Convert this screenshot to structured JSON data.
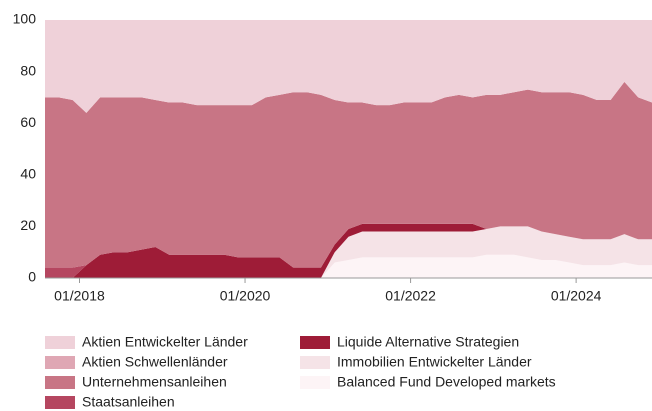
{
  "chart_data": {
    "type": "stacked_area",
    "x": [
      "08/2017",
      "10/2017",
      "12/2017",
      "02/2018",
      "04/2018",
      "06/2018",
      "08/2018",
      "10/2018",
      "12/2018",
      "02/2019",
      "04/2019",
      "06/2019",
      "08/2019",
      "10/2019",
      "12/2019",
      "02/2020",
      "04/2020",
      "06/2020",
      "08/2020",
      "10/2020",
      "12/2020",
      "02/2021",
      "04/2021",
      "06/2021",
      "08/2021",
      "10/2021",
      "12/2021",
      "02/2022",
      "04/2022",
      "06/2022",
      "08/2022",
      "10/2022",
      "12/2022",
      "02/2023",
      "04/2023",
      "06/2023",
      "08/2023",
      "10/2023",
      "12/2023",
      "02/2024",
      "04/2024",
      "06/2024",
      "08/2024",
      "10/2024",
      "12/2024"
    ],
    "xticks": [
      "01/2018",
      "01/2020",
      "01/2022",
      "01/2024"
    ],
    "ylim": [
      0,
      100
    ],
    "yticks": [
      0,
      20,
      40,
      60,
      80,
      100
    ],
    "series": [
      {
        "name": "Aktien Entwickelter Länder",
        "color": "#efd1d9",
        "values": [
          30,
          30,
          31,
          36,
          30,
          30,
          30,
          30,
          31,
          32,
          32,
          33,
          33,
          33,
          33,
          33,
          30,
          29,
          28,
          28,
          29,
          31,
          32,
          32,
          33,
          33,
          32,
          32,
          32,
          30,
          29,
          30,
          29,
          29,
          28,
          27,
          28,
          28,
          28,
          29,
          31,
          31,
          24,
          30,
          32
        ]
      },
      {
        "name": "Aktien Schwellenländer",
        "color": "#dfa7b4",
        "values": [
          0,
          0,
          0,
          0,
          0,
          0,
          0,
          0,
          0,
          0,
          0,
          0,
          0,
          0,
          0,
          0,
          0,
          0,
          0,
          0,
          0,
          0,
          0,
          0,
          0,
          0,
          0,
          0,
          0,
          0,
          0,
          0,
          0,
          0,
          0,
          0,
          0,
          0,
          0,
          0,
          0,
          0,
          0,
          0,
          0
        ]
      },
      {
        "name": "Unternehmensanleihen",
        "color": "#c87585",
        "values": [
          66,
          66,
          65,
          59,
          61,
          60,
          60,
          59,
          57,
          59,
          59,
          58,
          58,
          58,
          59,
          59,
          62,
          63,
          68,
          68,
          67,
          56,
          49,
          47,
          46,
          46,
          47,
          47,
          47,
          49,
          50,
          49,
          52,
          51,
          52,
          53,
          54,
          55,
          56,
          56,
          54,
          54,
          59,
          55,
          53
        ]
      },
      {
        "name": "Staatsanleihen",
        "color": "#b54660",
        "values": [
          4,
          4,
          4,
          0,
          0,
          0,
          0,
          0,
          0,
          0,
          0,
          0,
          0,
          0,
          0,
          0,
          0,
          0,
          0,
          0,
          0,
          0,
          0,
          0,
          0,
          0,
          0,
          0,
          0,
          0,
          0,
          0,
          0,
          0,
          0,
          0,
          0,
          0,
          0,
          0,
          0,
          0,
          0,
          0,
          0
        ]
      },
      {
        "name": "Liquide Alternative Strategien",
        "color": "#9e1c37",
        "values": [
          0,
          0,
          0,
          5,
          9,
          10,
          10,
          11,
          12,
          9,
          9,
          9,
          9,
          9,
          8,
          8,
          8,
          8,
          4,
          4,
          4,
          3,
          3,
          3,
          3,
          3,
          3,
          3,
          3,
          3,
          3,
          3,
          0,
          0,
          0,
          0,
          0,
          0,
          0,
          0,
          0,
          0,
          0,
          0,
          0
        ]
      },
      {
        "name": "Immobilien Entwickelter Länder",
        "color": "#f5e3e7",
        "values": [
          0,
          0,
          0,
          0,
          0,
          0,
          0,
          0,
          0,
          0,
          0,
          0,
          0,
          0,
          0,
          0,
          0,
          0,
          0,
          0,
          0,
          4,
          9,
          10,
          10,
          10,
          10,
          10,
          10,
          10,
          10,
          10,
          10,
          11,
          11,
          12,
          11,
          10,
          10,
          10,
          10,
          10,
          11,
          10,
          10
        ]
      },
      {
        "name": "Balanced Fund Developed markets",
        "color": "#fdf4f6",
        "values": [
          0,
          0,
          0,
          0,
          0,
          0,
          0,
          0,
          0,
          0,
          0,
          0,
          0,
          0,
          0,
          0,
          0,
          0,
          0,
          0,
          0,
          6,
          7,
          8,
          8,
          8,
          8,
          8,
          8,
          8,
          8,
          8,
          9,
          9,
          9,
          8,
          7,
          7,
          6,
          5,
          5,
          5,
          6,
          5,
          5
        ]
      }
    ]
  }
}
